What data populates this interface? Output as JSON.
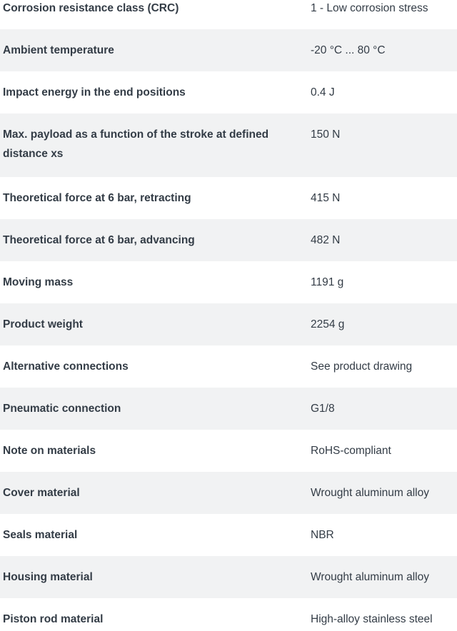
{
  "colors": {
    "text": "#333c46",
    "row_bg": "#ffffff",
    "row_shaded_bg": "#f1f2f3"
  },
  "table": {
    "rows": [
      {
        "label": "Corrosion resistance class (CRC)",
        "value": "1 - Low corrosion stress",
        "shaded": false,
        "two_line": false
      },
      {
        "label": "Ambient temperature",
        "value": "-20 °C ... 80 °C",
        "shaded": true,
        "two_line": false
      },
      {
        "label": "Impact energy in the end positions",
        "value": "0.4 J",
        "shaded": false,
        "two_line": false
      },
      {
        "label": "Max. payload as a function of the stroke at defined distance xs",
        "value": "150 N",
        "shaded": true,
        "two_line": true
      },
      {
        "label": "Theoretical force at 6 bar, retracting",
        "value": "415 N",
        "shaded": false,
        "two_line": false
      },
      {
        "label": "Theoretical force at 6 bar, advancing",
        "value": "482 N",
        "shaded": true,
        "two_line": false
      },
      {
        "label": "Moving mass",
        "value": "1191 g",
        "shaded": false,
        "two_line": false
      },
      {
        "label": "Product weight",
        "value": "2254 g",
        "shaded": true,
        "two_line": false
      },
      {
        "label": "Alternative connections",
        "value": "See product drawing",
        "shaded": false,
        "two_line": false
      },
      {
        "label": "Pneumatic connection",
        "value": "G1/8",
        "shaded": true,
        "two_line": false
      },
      {
        "label": "Note on materials",
        "value": "RoHS-compliant",
        "shaded": false,
        "two_line": false
      },
      {
        "label": "Cover material",
        "value": "Wrought aluminum alloy",
        "shaded": true,
        "two_line": false
      },
      {
        "label": "Seals material",
        "value": "NBR",
        "shaded": false,
        "two_line": false
      },
      {
        "label": "Housing material",
        "value": "Wrought aluminum alloy",
        "shaded": true,
        "two_line": false
      },
      {
        "label": "Piston rod material",
        "value": "High-alloy stainless steel",
        "shaded": false,
        "two_line": false
      }
    ]
  }
}
